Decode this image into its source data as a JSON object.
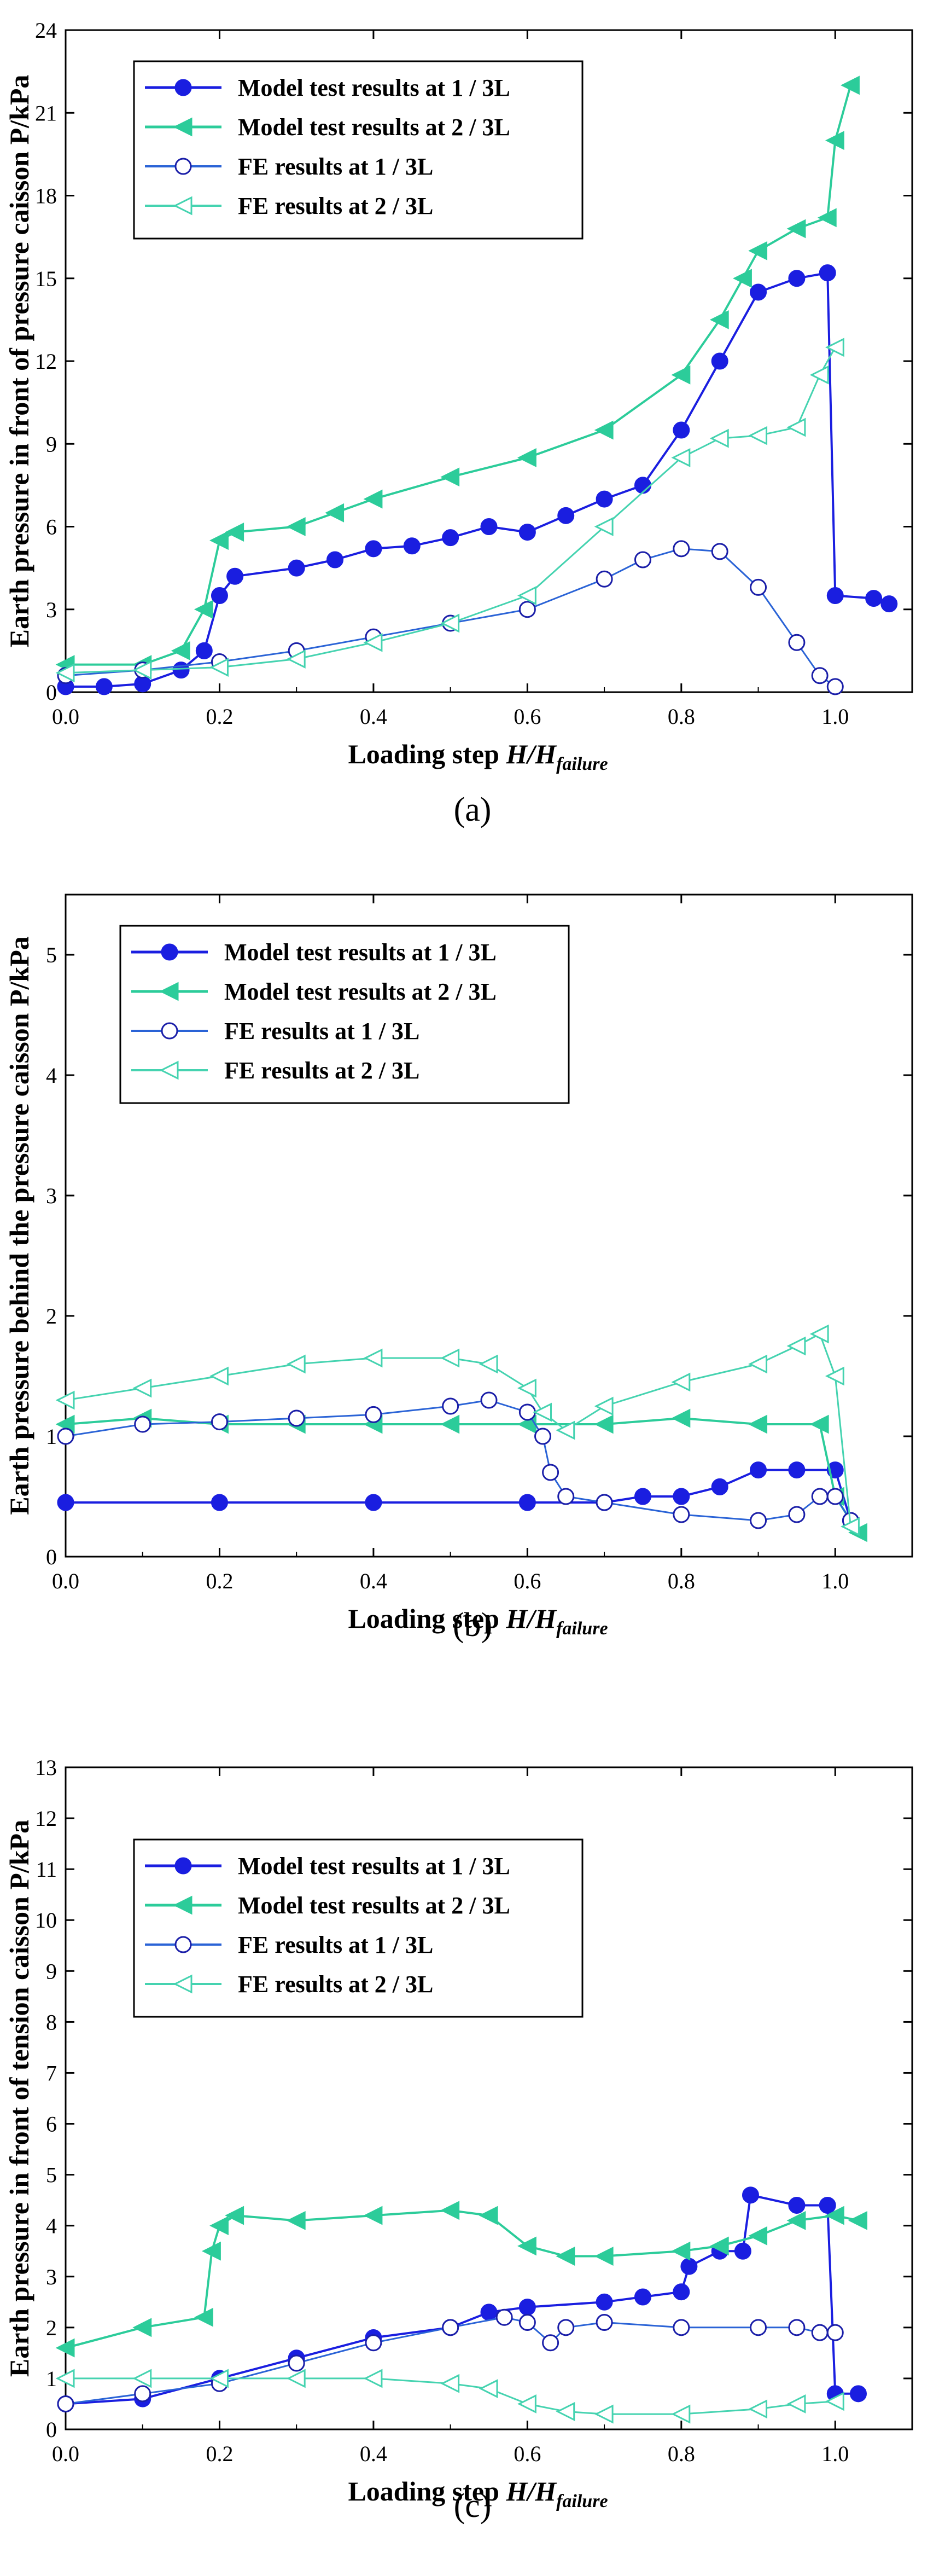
{
  "colors": {
    "model_1_3L": "#1a1ee0",
    "model_2_3L": "#2ccc9a",
    "fe_1_3L": "#2a63d6",
    "fe_1_3L_marker": "#1a1ea8",
    "fe_2_3L": "#45d3b0"
  },
  "chart_data": [
    {
      "type": "line",
      "panel_label": "(a)",
      "xlabel": "Loading step H/H",
      "xlabel_sub": "failure",
      "ylabel": "Earth pressure in front of pressure caisson  P/kPa",
      "xlim": [
        0,
        1.1
      ],
      "ylim": [
        0,
        24
      ],
      "xticks": [
        "0.0",
        "0.2",
        "0.4",
        "0.6",
        "0.8",
        "1.0"
      ],
      "yticks": [
        "0",
        "3",
        "6",
        "9",
        "12",
        "15",
        "18",
        "21",
        "24"
      ],
      "legend": [
        "Model test results at 1 / 3L",
        "Model test results at 2 / 3L",
        "FE  results at 1 / 3L",
        "FE  results at 2 / 3L"
      ],
      "series": [
        {
          "name": "Model test results at 1 / 3L",
          "x": [
            0,
            0.05,
            0.1,
            0.15,
            0.18,
            0.2,
            0.22,
            0.3,
            0.35,
            0.4,
            0.45,
            0.5,
            0.55,
            0.6,
            0.65,
            0.7,
            0.75,
            0.8,
            0.85,
            0.9,
            0.95,
            0.99,
            1.0,
            1.05,
            1.07
          ],
          "y": [
            0.2,
            0.2,
            0.3,
            0.8,
            1.5,
            3.5,
            4.2,
            4.5,
            4.8,
            5.2,
            5.3,
            5.6,
            6.0,
            5.8,
            6.4,
            7.0,
            7.5,
            9.5,
            12.0,
            14.5,
            15.0,
            15.2,
            3.5,
            3.4,
            3.2
          ]
        },
        {
          "name": "Model test results at 2 / 3L",
          "x": [
            0,
            0.1,
            0.15,
            0.18,
            0.2,
            0.22,
            0.3,
            0.35,
            0.4,
            0.5,
            0.6,
            0.7,
            0.8,
            0.85,
            0.88,
            0.9,
            0.95,
            0.99,
            1.0,
            1.02
          ],
          "y": [
            1.0,
            1.0,
            1.5,
            3.0,
            5.5,
            5.8,
            6.0,
            6.5,
            7.0,
            7.8,
            8.5,
            9.5,
            11.5,
            13.5,
            15.0,
            16.0,
            16.8,
            17.2,
            20.0,
            22.0
          ]
        },
        {
          "name": "FE  results at 1 / 3L",
          "x": [
            0,
            0.1,
            0.2,
            0.3,
            0.4,
            0.5,
            0.6,
            0.7,
            0.75,
            0.8,
            0.85,
            0.9,
            0.95,
            0.98,
            1.0
          ],
          "y": [
            0.6,
            0.8,
            1.1,
            1.5,
            2.0,
            2.5,
            3.0,
            4.1,
            4.8,
            5.2,
            5.1,
            3.8,
            1.8,
            0.6,
            0.2
          ]
        },
        {
          "name": "FE  results at 2 / 3L",
          "x": [
            0,
            0.1,
            0.2,
            0.3,
            0.4,
            0.5,
            0.6,
            0.7,
            0.8,
            0.85,
            0.9,
            0.95,
            0.98,
            1.0
          ],
          "y": [
            0.7,
            0.8,
            0.9,
            1.2,
            1.8,
            2.5,
            3.5,
            6.0,
            8.5,
            9.2,
            9.3,
            9.6,
            11.5,
            12.5
          ]
        }
      ]
    },
    {
      "type": "line",
      "panel_label": "(b)",
      "xlabel": "Loading step H/H",
      "xlabel_sub": "failure",
      "ylabel": "Earth pressure behind the pressure caisson  P/kPa",
      "xlim": [
        0,
        1.1
      ],
      "ylim": [
        0,
        5.5
      ],
      "xticks": [
        "0.0",
        "0.2",
        "0.4",
        "0.6",
        "0.8",
        "1.0"
      ],
      "yticks": [
        "0",
        "1",
        "2",
        "3",
        "4",
        "5"
      ],
      "legend": [
        "Model test results at 1 / 3L",
        "Model test results at 2 / 3L",
        "FE  results at 1 / 3L",
        "FE  results at 2 / 3L"
      ],
      "series": [
        {
          "name": "Model test results at 1 / 3L",
          "x": [
            0,
            0.2,
            0.4,
            0.6,
            0.7,
            0.75,
            0.8,
            0.85,
            0.9,
            0.95,
            1.0,
            1.02
          ],
          "y": [
            0.45,
            0.45,
            0.45,
            0.45,
            0.45,
            0.5,
            0.5,
            0.58,
            0.72,
            0.72,
            0.72,
            0.3
          ]
        },
        {
          "name": "Model test results at 2 / 3L",
          "x": [
            0,
            0.1,
            0.2,
            0.3,
            0.4,
            0.5,
            0.6,
            0.7,
            0.8,
            0.9,
            0.98,
            1.0,
            1.03
          ],
          "y": [
            1.1,
            1.15,
            1.1,
            1.1,
            1.1,
            1.1,
            1.1,
            1.1,
            1.15,
            1.1,
            1.1,
            0.5,
            0.2
          ]
        },
        {
          "name": "FE  results at 1 / 3L",
          "x": [
            0,
            0.1,
            0.2,
            0.3,
            0.4,
            0.5,
            0.55,
            0.6,
            0.62,
            0.63,
            0.65,
            0.7,
            0.8,
            0.9,
            0.95,
            0.98,
            1.0,
            1.02
          ],
          "y": [
            1.0,
            1.1,
            1.12,
            1.15,
            1.18,
            1.25,
            1.3,
            1.2,
            1.0,
            0.7,
            0.5,
            0.45,
            0.35,
            0.3,
            0.35,
            0.5,
            0.5,
            0.3
          ]
        },
        {
          "name": "FE  results at 2 / 3L",
          "x": [
            0,
            0.1,
            0.2,
            0.3,
            0.4,
            0.5,
            0.55,
            0.6,
            0.62,
            0.65,
            0.7,
            0.8,
            0.9,
            0.95,
            0.98,
            1.0,
            1.02
          ],
          "y": [
            1.3,
            1.4,
            1.5,
            1.6,
            1.65,
            1.65,
            1.6,
            1.4,
            1.2,
            1.05,
            1.25,
            1.45,
            1.6,
            1.75,
            1.85,
            1.5,
            0.25
          ]
        }
      ]
    },
    {
      "type": "line",
      "panel_label": "(c)",
      "xlabel": "Loading step H/H",
      "xlabel_sub": "failure",
      "ylabel": "Earth pressure in front of tension caisson  P/kPa",
      "xlim": [
        0,
        1.1
      ],
      "ylim": [
        0,
        13
      ],
      "xticks": [
        "0.0",
        "0.2",
        "0.4",
        "0.6",
        "0.8",
        "1.0"
      ],
      "yticks": [
        "0",
        "1",
        "2",
        "3",
        "4",
        "5",
        "6",
        "7",
        "8",
        "9",
        "10",
        "11",
        "12",
        "13"
      ],
      "legend": [
        "Model test results at 1 / 3L",
        "Model test results at 2 / 3L",
        "FE  results at 1 / 3L",
        "FE  results at 2 / 3L"
      ],
      "series": [
        {
          "name": "Model test results at 1 / 3L",
          "x": [
            0,
            0.1,
            0.2,
            0.3,
            0.4,
            0.5,
            0.55,
            0.6,
            0.7,
            0.75,
            0.8,
            0.81,
            0.85,
            0.88,
            0.89,
            0.95,
            0.99,
            1.0,
            1.03
          ],
          "y": [
            0.5,
            0.6,
            1.0,
            1.4,
            1.8,
            2.0,
            2.3,
            2.4,
            2.5,
            2.6,
            2.7,
            3.2,
            3.5,
            3.5,
            4.6,
            4.4,
            4.4,
            0.7,
            0.7
          ]
        },
        {
          "name": "Model test results at 2 / 3L",
          "x": [
            0,
            0.1,
            0.18,
            0.19,
            0.2,
            0.22,
            0.3,
            0.4,
            0.5,
            0.55,
            0.6,
            0.65,
            0.7,
            0.8,
            0.85,
            0.9,
            0.95,
            1.0,
            1.03
          ],
          "y": [
            1.6,
            2.0,
            2.2,
            3.5,
            4.0,
            4.2,
            4.1,
            4.2,
            4.3,
            4.2,
            3.6,
            3.4,
            3.4,
            3.5,
            3.6,
            3.8,
            4.1,
            4.2,
            4.1
          ]
        },
        {
          "name": "FE  results at 1 / 3L",
          "x": [
            0,
            0.1,
            0.2,
            0.3,
            0.4,
            0.5,
            0.57,
            0.6,
            0.63,
            0.65,
            0.7,
            0.8,
            0.9,
            0.95,
            0.98,
            1.0
          ],
          "y": [
            0.5,
            0.7,
            0.9,
            1.3,
            1.7,
            2.0,
            2.2,
            2.1,
            1.7,
            2.0,
            2.1,
            2.0,
            2.0,
            2.0,
            1.9,
            1.9
          ]
        },
        {
          "name": "FE  results at 2 / 3L",
          "x": [
            0,
            0.1,
            0.2,
            0.3,
            0.4,
            0.5,
            0.55,
            0.6,
            0.65,
            0.7,
            0.8,
            0.9,
            0.95,
            1.0
          ],
          "y": [
            1.0,
            1.0,
            1.0,
            1.0,
            1.0,
            0.9,
            0.8,
            0.5,
            0.35,
            0.3,
            0.3,
            0.4,
            0.5,
            0.55
          ]
        }
      ]
    }
  ]
}
